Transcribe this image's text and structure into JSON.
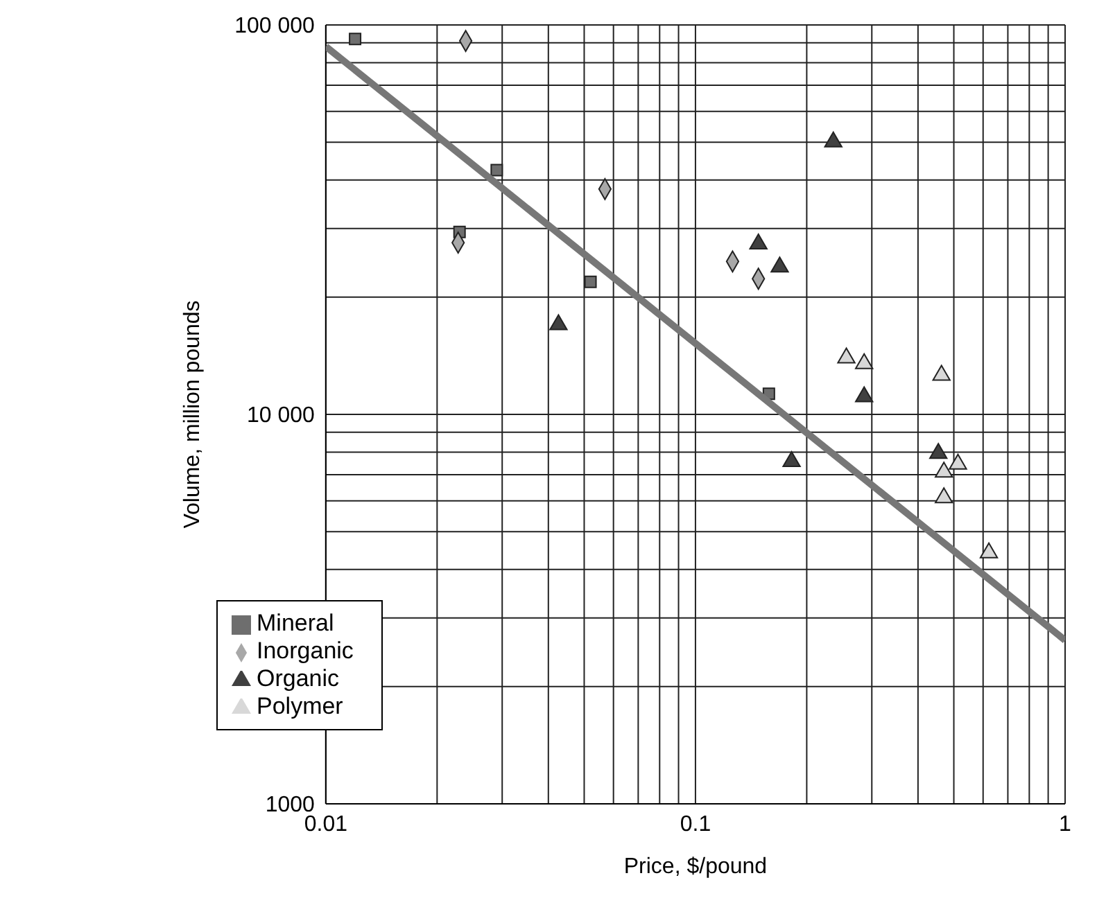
{
  "chart_data": {
    "type": "scatter",
    "xlabel": "Price, $/pound",
    "ylabel": "Volume, million pounds",
    "log": "xy",
    "grid": true,
    "legend": "bottom left",
    "xlim": [
      0.01,
      1
    ],
    "ylim": [
      1000,
      100000
    ],
    "xticks": [
      0.01,
      {
        "value": 0.02,
        "label": null
      },
      {
        "value": 0.03,
        "label": null
      },
      {
        "value": 0.04,
        "label": null
      },
      {
        "value": 0.05,
        "label": null
      },
      {
        "value": 0.06,
        "label": null
      },
      {
        "value": 0.07,
        "label": null
      },
      {
        "value": 0.08,
        "label": null
      },
      {
        "value": 0.09,
        "label": null
      },
      0.1,
      {
        "value": 0.2,
        "label": null
      },
      {
        "value": 0.3,
        "label": null
      },
      {
        "value": 0.4,
        "label": null
      },
      {
        "value": 0.5,
        "label": null
      },
      {
        "value": 0.6,
        "label": null
      },
      {
        "value": 0.7,
        "label": null
      },
      {
        "value": 0.8,
        "label": null
      },
      {
        "value": 0.9,
        "label": null
      },
      1
    ],
    "yticks": [
      1000,
      {
        "value": 2000,
        "label": null
      },
      {
        "value": 3000,
        "label": null
      },
      {
        "value": 4000,
        "label": null
      },
      {
        "value": 5000,
        "label": null
      },
      {
        "value": 6000,
        "label": null
      },
      {
        "value": 7000,
        "label": null
      },
      {
        "value": 8000,
        "label": null
      },
      {
        "value": 9000,
        "label": null
      },
      {
        "value": 10000,
        "label": "10 000"
      },
      {
        "value": 20000,
        "label": null
      },
      {
        "value": 30000,
        "label": null
      },
      {
        "value": 40000,
        "label": null
      },
      {
        "value": 50000,
        "label": null
      },
      {
        "value": 60000,
        "label": null
      },
      {
        "value": 70000,
        "label": null
      },
      {
        "value": 80000,
        "label": null
      },
      {
        "value": 90000,
        "label": null
      },
      {
        "value": 100000,
        "label": "100 000"
      }
    ],
    "series": [
      {
        "name": "Mineral",
        "color": "#6e6e6e",
        "marker": "square",
        "x": [
          0.012,
          0.023,
          0.029,
          0.052,
          0.158
        ],
        "values": [
          92000,
          29400,
          42400,
          21900,
          11300
        ]
      },
      {
        "name": "Inorganic",
        "color": "#a8a8a8",
        "marker": "diamond",
        "x": [
          0.0239,
          0.0228,
          0.0569,
          0.126,
          0.148
        ],
        "values": [
          91000,
          27600,
          37900,
          24700,
          22300
        ]
      },
      {
        "name": "Organic",
        "color": "#404040",
        "marker": "triangle",
        "x": [
          0.0426,
          0.236,
          0.148,
          0.169,
          0.182,
          0.286,
          0.454
        ],
        "values": [
          17000,
          50100,
          27400,
          23900,
          7570,
          11100,
          7940
        ]
      },
      {
        "name": "Polymer",
        "color": "#d8d8d8",
        "marker": "triangle",
        "x": [
          0.256,
          0.286,
          0.463,
          0.513,
          0.47,
          0.47,
          0.622
        ],
        "values": [
          13960,
          13500,
          12600,
          7450,
          7110,
          6110,
          4410
        ]
      },
      {
        "type": "line",
        "color": "#777777",
        "x": [
          0.01,
          1
        ],
        "values": [
          88000,
          2630
        ]
      }
    ]
  }
}
